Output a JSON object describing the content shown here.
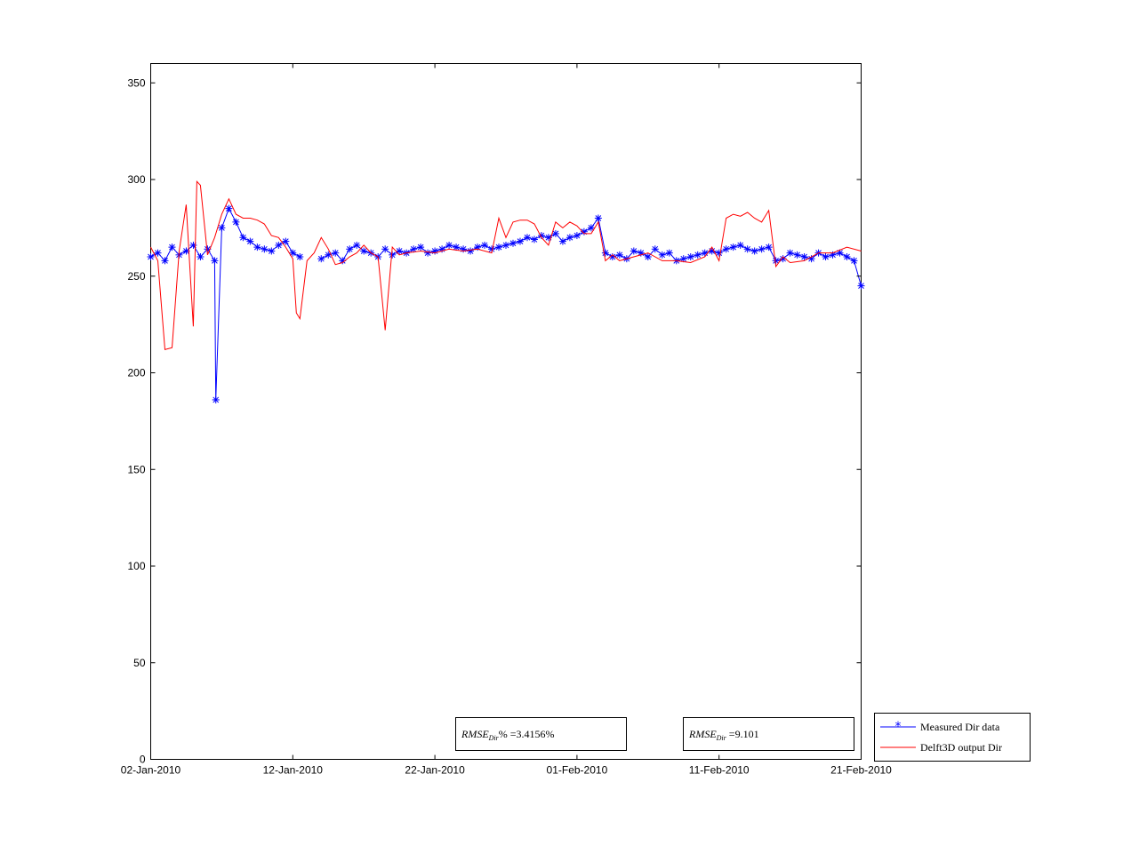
{
  "chart_data": {
    "type": "line",
    "title": "",
    "xlabel": "",
    "ylabel": "",
    "x_type": "date",
    "xlim": [
      "2010-01-02",
      "2010-02-21"
    ],
    "ylim": [
      0,
      360
    ],
    "x_ticks": [
      "02-Jan-2010",
      "12-Jan-2010",
      "22-Jan-2010",
      "01-Feb-2010",
      "11-Feb-2010",
      "21-Feb-2010"
    ],
    "y_ticks": [
      0,
      50,
      100,
      150,
      200,
      250,
      300,
      350
    ],
    "grid": false,
    "legend_position": "outside-bottom-right",
    "series": [
      {
        "name": "Measured Dir data",
        "color": "#0000ff",
        "marker": "asterisk",
        "x": [
          "2010-01-02",
          "2010-01-02T12:00",
          "2010-01-03",
          "2010-01-03T12:00",
          "2010-01-04",
          "2010-01-04T12:00",
          "2010-01-05",
          "2010-01-05T12:00",
          "2010-01-06",
          "2010-01-06T12:00",
          "2010-01-06T14:00",
          "2010-01-07",
          "2010-01-07T12:00",
          "2010-01-08",
          "2010-01-08T12:00",
          "2010-01-09",
          "2010-01-09T12:00",
          "2010-01-10",
          "2010-01-10T12:00",
          "2010-01-11",
          "2010-01-11T12:00",
          "2010-01-12",
          "2010-01-12T12:00",
          "2010-01-13",
          "2010-01-14",
          "2010-01-14T12:00",
          "2010-01-15",
          "2010-01-15T12:00",
          "2010-01-16",
          "2010-01-16T12:00",
          "2010-01-17",
          "2010-01-17T12:00",
          "2010-01-18",
          "2010-01-18T12:00",
          "2010-01-19",
          "2010-01-19T12:00",
          "2010-01-20",
          "2010-01-20T12:00",
          "2010-01-21",
          "2010-01-21T12:00",
          "2010-01-22",
          "2010-01-22T12:00",
          "2010-01-23",
          "2010-01-23T12:00",
          "2010-01-24",
          "2010-01-24T12:00",
          "2010-01-25",
          "2010-01-25T12:00",
          "2010-01-26",
          "2010-01-26T12:00",
          "2010-01-27",
          "2010-01-27T12:00",
          "2010-01-28",
          "2010-01-28T12:00",
          "2010-01-29",
          "2010-01-29T12:00",
          "2010-01-30",
          "2010-01-30T12:00",
          "2010-01-31",
          "2010-01-31T12:00",
          "2010-02-01",
          "2010-02-01T12:00",
          "2010-02-02",
          "2010-02-02T12:00",
          "2010-02-03",
          "2010-02-03T12:00",
          "2010-02-04",
          "2010-02-04T12:00",
          "2010-02-05",
          "2010-02-05T12:00",
          "2010-02-06",
          "2010-02-06T12:00",
          "2010-02-07",
          "2010-02-07T12:00",
          "2010-02-08",
          "2010-02-08T12:00",
          "2010-02-09",
          "2010-02-09T12:00",
          "2010-02-10",
          "2010-02-10T12:00",
          "2010-02-11",
          "2010-02-11T12:00",
          "2010-02-12",
          "2010-02-12T12:00",
          "2010-02-13",
          "2010-02-13T12:00",
          "2010-02-14",
          "2010-02-14T12:00",
          "2010-02-15",
          "2010-02-15T12:00",
          "2010-02-16",
          "2010-02-16T12:00",
          "2010-02-17",
          "2010-02-17T12:00",
          "2010-02-18",
          "2010-02-18T12:00",
          "2010-02-19",
          "2010-02-19T12:00",
          "2010-02-20",
          "2010-02-20T12:00",
          "2010-02-21"
        ],
        "y": [
          260,
          262,
          258,
          265,
          261,
          263,
          266,
          260,
          264,
          258,
          186,
          275,
          285,
          278,
          270,
          268,
          265,
          264,
          263,
          266,
          268,
          262,
          260,
          null,
          259,
          261,
          262,
          258,
          264,
          266,
          263,
          262,
          260,
          264,
          261,
          263,
          262,
          264,
          265,
          262,
          263,
          264,
          266,
          265,
          264,
          263,
          265,
          266,
          264,
          265,
          266,
          267,
          268,
          270,
          269,
          271,
          270,
          272,
          268,
          270,
          271,
          273,
          275,
          280,
          262,
          260,
          261,
          259,
          263,
          262,
          260,
          264,
          261,
          262,
          258,
          259,
          260,
          261,
          262,
          263,
          262,
          264,
          265,
          266,
          264,
          263,
          264,
          265,
          258,
          259,
          262,
          261,
          260,
          259,
          262,
          260,
          261,
          262,
          260,
          258,
          245
        ]
      },
      {
        "name": "Delft3D output Dir",
        "color": "#ff0000",
        "x": [
          "2010-01-02",
          "2010-01-02T12:00",
          "2010-01-03",
          "2010-01-03T12:00",
          "2010-01-04",
          "2010-01-04T12:00",
          "2010-01-05",
          "2010-01-05T06:00",
          "2010-01-05T12:00",
          "2010-01-06",
          "2010-01-06T12:00",
          "2010-01-07",
          "2010-01-07T12:00",
          "2010-01-08",
          "2010-01-08T12:00",
          "2010-01-09",
          "2010-01-09T12:00",
          "2010-01-10",
          "2010-01-10T12:00",
          "2010-01-11",
          "2010-01-11T12:00",
          "2010-01-12",
          "2010-01-12T06:00",
          "2010-01-12T12:00",
          "2010-01-13",
          "2010-01-13T12:00",
          "2010-01-14",
          "2010-01-14T12:00",
          "2010-01-15",
          "2010-01-15T12:00",
          "2010-01-16",
          "2010-01-16T12:00",
          "2010-01-17",
          "2010-01-17T12:00",
          "2010-01-18",
          "2010-01-18T12:00",
          "2010-01-19",
          "2010-01-19T12:00",
          "2010-01-20",
          "2010-01-21",
          "2010-01-22",
          "2010-01-23",
          "2010-01-24",
          "2010-01-25",
          "2010-01-26",
          "2010-01-26T12:00",
          "2010-01-27",
          "2010-01-27T12:00",
          "2010-01-28",
          "2010-01-28T12:00",
          "2010-01-29",
          "2010-01-29T12:00",
          "2010-01-30",
          "2010-01-30T12:00",
          "2010-01-31",
          "2010-01-31T12:00",
          "2010-02-01",
          "2010-02-01T12:00",
          "2010-02-02",
          "2010-02-02T12:00",
          "2010-02-03",
          "2010-02-03T12:00",
          "2010-02-04",
          "2010-02-05",
          "2010-02-06",
          "2010-02-07",
          "2010-02-08",
          "2010-02-09",
          "2010-02-10",
          "2010-02-10T12:00",
          "2010-02-11",
          "2010-02-11T12:00",
          "2010-02-12",
          "2010-02-12T12:00",
          "2010-02-13",
          "2010-02-13T12:00",
          "2010-02-14",
          "2010-02-14T12:00",
          "2010-02-15",
          "2010-02-15T12:00",
          "2010-02-16",
          "2010-02-17",
          "2010-02-18",
          "2010-02-19",
          "2010-02-20",
          "2010-02-21"
        ],
        "y": [
          265,
          258,
          212,
          213,
          263,
          287,
          224,
          299,
          297,
          261,
          270,
          282,
          290,
          282,
          280,
          280,
          279,
          277,
          271,
          270,
          265,
          259,
          231,
          228,
          258,
          262,
          270,
          264,
          256,
          257,
          260,
          262,
          266,
          262,
          260,
          222,
          265,
          261,
          262,
          263,
          262,
          264,
          263,
          264,
          262,
          280,
          270,
          278,
          279,
          279,
          277,
          270,
          266,
          278,
          275,
          278,
          276,
          272,
          272,
          278,
          258,
          261,
          258,
          260,
          262,
          258,
          258,
          257,
          260,
          265,
          258,
          280,
          282,
          281,
          283,
          280,
          278,
          284,
          255,
          260,
          257,
          258,
          262,
          262,
          265,
          263
        ]
      }
    ],
    "annotations": {
      "rmse_percent": {
        "label": "RMSE",
        "subscript": "Dir",
        "suffix": "% =",
        "value": "3.4156%"
      },
      "rmse": {
        "label": "RMSE",
        "subscript": "Dir",
        "suffix": " =",
        "value": "9.101"
      }
    }
  }
}
